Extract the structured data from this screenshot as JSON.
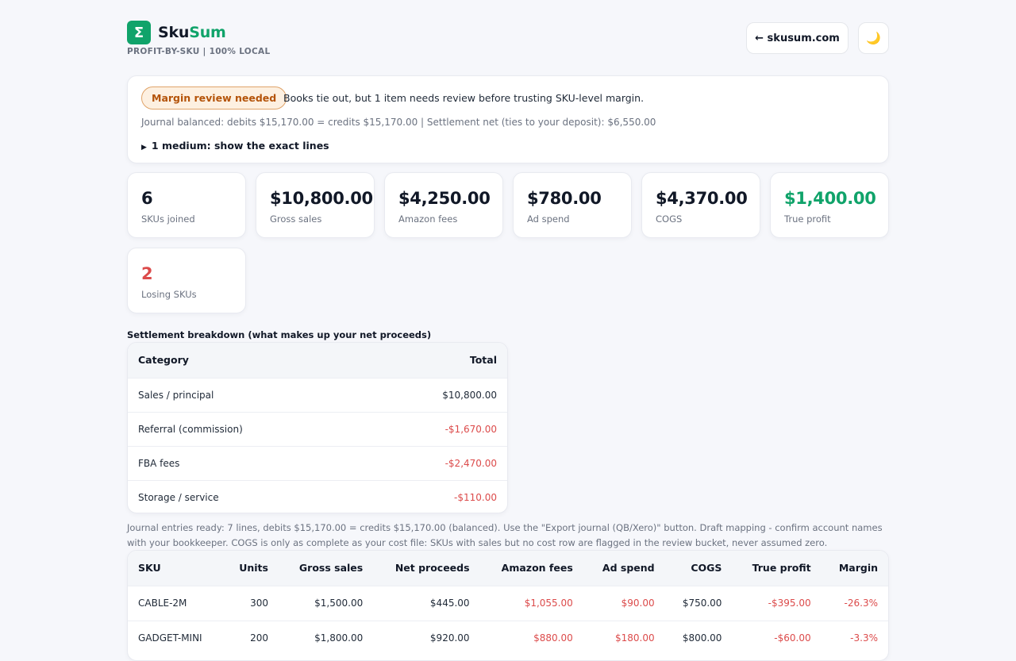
{
  "brand": {
    "name_part1": "Sku",
    "name_part2": "Sum",
    "logo_glyph": "Σ",
    "tagline": "PROFIT-BY-SKU | 100% LOCAL"
  },
  "header": {
    "site_link": "← skusum.com",
    "theme_icon": "moon-icon",
    "theme_glyph": "🌙"
  },
  "status": {
    "pill": "Margin review needed",
    "message": "Books tie out, but 1 item needs review before trusting SKU-level margin.",
    "journal": "Journal balanced: debits $15,170.00 = credits $15,170.00 | Settlement net (ties to your deposit): $6,550.00",
    "details_toggle": "1 medium: show the exact lines"
  },
  "metrics": [
    {
      "value": "6",
      "label": "SKUs joined"
    },
    {
      "value": "$10,800.00",
      "label": "Gross sales"
    },
    {
      "value": "$4,250.00",
      "label": "Amazon fees"
    },
    {
      "value": "$780.00",
      "label": "Ad spend"
    },
    {
      "value": "$4,370.00",
      "label": "COGS"
    },
    {
      "value": "$1,400.00",
      "label": "True profit"
    },
    {
      "value": "2",
      "label": "Losing SKUs"
    }
  ],
  "settlement": {
    "title": "Settlement breakdown (what makes up your net proceeds)",
    "headers": [
      "Category",
      "Total"
    ],
    "rows": [
      [
        "Sales / principal",
        "$10,800.00"
      ],
      [
        "Referral (commission)",
        "-$1,670.00"
      ],
      [
        "FBA fees",
        "-$2,470.00"
      ],
      [
        "Storage / service",
        "-$110.00"
      ]
    ]
  },
  "note": "Journal entries ready: 7 lines, debits $15,170.00 = credits $15,170.00 (balanced). Use the \"Export journal (QB/Xero)\" button. Draft mapping - confirm account names with your bookkeeper. COGS is only as complete as your cost file: SKUs with sales but no cost row are flagged in the review bucket, never assumed zero.",
  "sku_table": {
    "headers": [
      "SKU",
      "Units",
      "Gross sales",
      "Net proceeds",
      "Amazon fees",
      "Ad spend",
      "COGS",
      "True profit",
      "Margin"
    ],
    "rows": [
      [
        "CABLE-2M",
        "300",
        "$1,500.00",
        "$445.00",
        "$1,055.00",
        "$90.00",
        "$750.00",
        "-$395.00",
        "-26.3%"
      ],
      [
        "GADGET-MINI",
        "200",
        "$1,800.00",
        "$920.00",
        "$880.00",
        "$180.00",
        "$800.00",
        "-$60.00",
        "-3.3%"
      ]
    ]
  },
  "colors": {
    "accent": "#10a36a",
    "negative": "#dc4b4b",
    "warning": "#b45309"
  }
}
